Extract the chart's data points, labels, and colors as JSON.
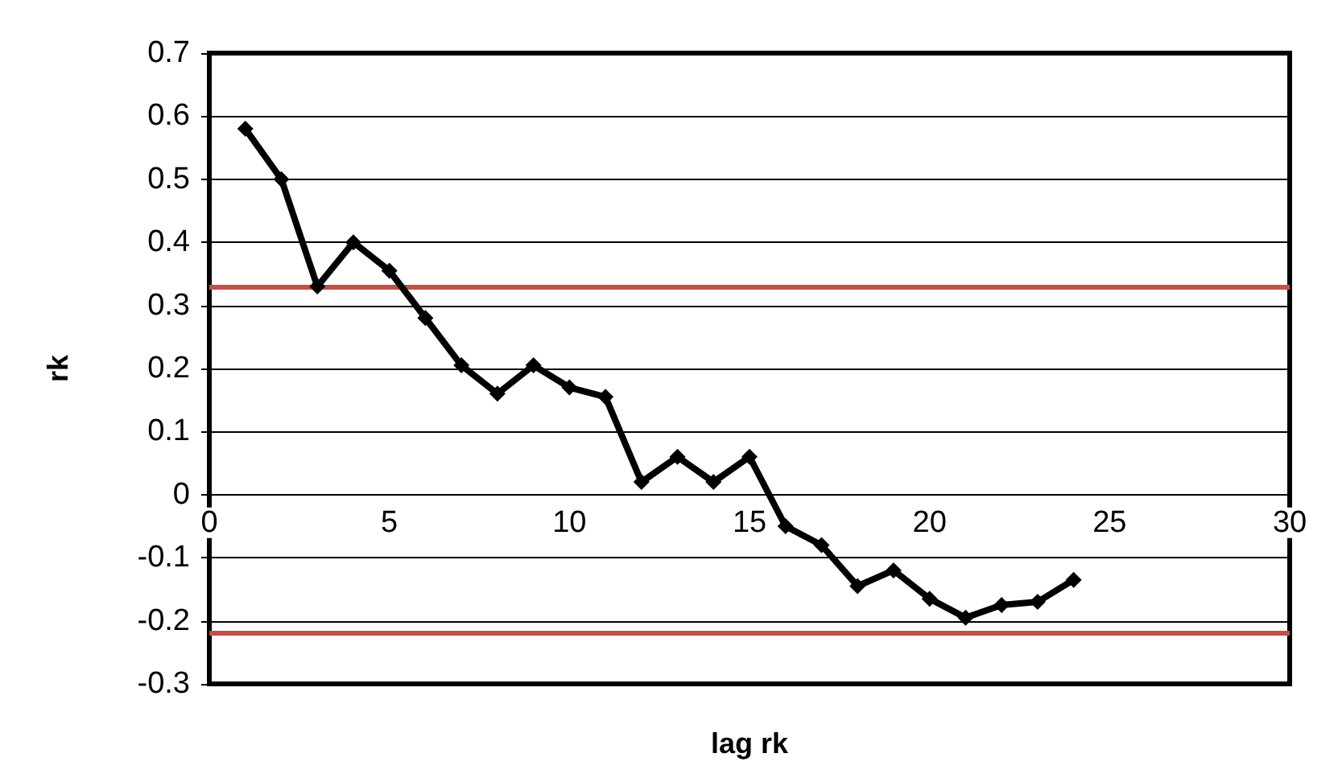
{
  "chart_data": {
    "type": "line",
    "xlabel": "lag rk",
    "ylabel": "rk",
    "x": [
      1,
      2,
      3,
      4,
      5,
      6,
      7,
      8,
      9,
      10,
      11,
      12,
      13,
      14,
      15,
      16,
      17,
      18,
      19,
      20,
      21,
      22,
      23,
      24
    ],
    "series": [
      {
        "color": "#000000",
        "values": [
          0.58,
          0.5,
          0.33,
          0.4,
          0.355,
          0.28,
          0.205,
          0.16,
          0.205,
          0.17,
          0.155,
          0.02,
          0.06,
          0.02,
          0.06,
          -0.05,
          -0.08,
          -0.145,
          -0.12,
          -0.165,
          -0.195,
          -0.175,
          -0.17,
          -0.135
        ]
      }
    ],
    "xlim": [
      0,
      30
    ],
    "xticks": [
      0,
      5,
      10,
      15,
      20,
      25,
      30
    ],
    "ylim": [
      -0.3,
      0.7
    ],
    "yticks": [
      -0.3,
      -0.2,
      -0.1,
      0,
      0.1,
      0.2,
      0.3,
      0.4,
      0.5,
      0.6,
      0.7
    ],
    "ref_lines": [
      {
        "axis": "y",
        "value": 0.33,
        "color": "#c0504d"
      },
      {
        "axis": "y",
        "value": -0.22,
        "color": "#c0504d"
      }
    ],
    "grid": "y",
    "marker": "diamond",
    "line_style": "solid"
  }
}
